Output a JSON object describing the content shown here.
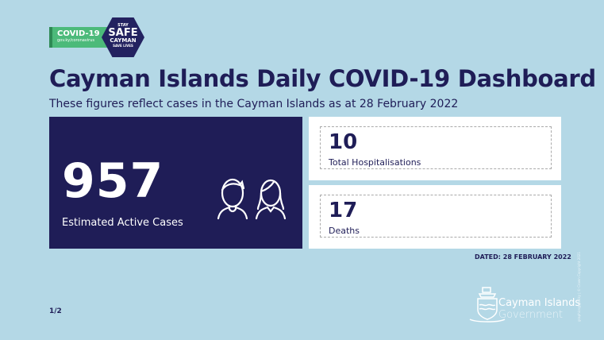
{
  "logo": {
    "covid_label": "COVID-19",
    "covid_url": "gov.ky/coronavirus",
    "stay": "STAY",
    "safe": "SAFE",
    "cayman": "CAYMAN",
    "save_lives": "SAVE LIVES"
  },
  "title": "Cayman Islands Daily COVID-19 Dashboard",
  "subtitle": "These figures reflect cases in the Cayman Islands as at 28 February 2022",
  "active": {
    "value": "957",
    "label": "Estimated Active Cases"
  },
  "hospitalisations": {
    "value": "10",
    "label": "Total Hospitalisations"
  },
  "deaths": {
    "value": "17",
    "label": "Deaths"
  },
  "dated": "DATED: 28 FEBRUARY 2022",
  "page": "1/2",
  "government": {
    "line1": "Cayman Islands",
    "line2": "Government"
  },
  "credit": "graphics@gov.ky | © Crown Copyright 2021",
  "colors": {
    "background": "#b4d8e6",
    "navy": "#1f1d57",
    "green": "#4cba7a"
  }
}
